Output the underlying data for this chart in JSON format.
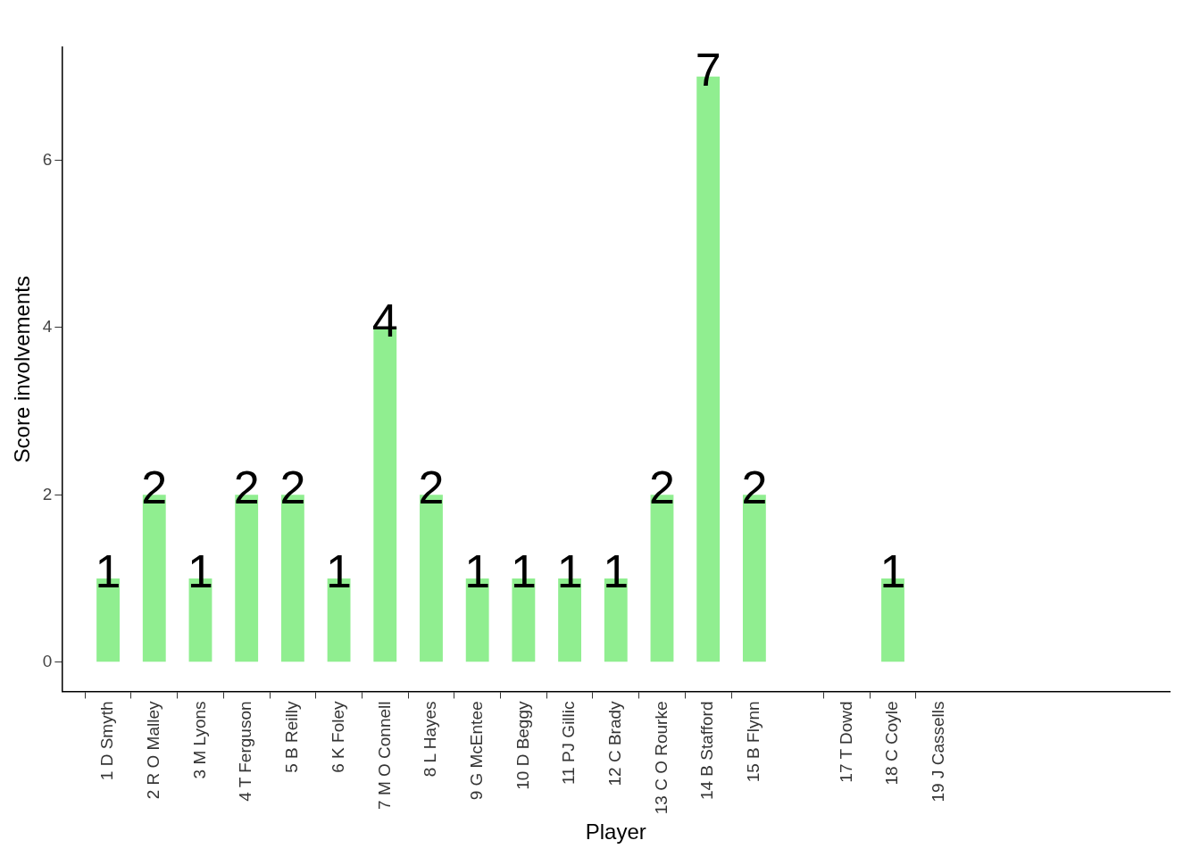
{
  "chart_data": {
    "type": "bar",
    "xlabel": "Player",
    "ylabel": "Score involvements",
    "categories": [
      null,
      "1 D Smyth",
      "2 R O Malley",
      "3 M Lyons",
      "4 T Ferguson",
      "5 B Reilly",
      "6 K Foley",
      "7 M O Connell",
      "8 L Hayes",
      "9 G McEntee",
      "10 D Beggy",
      "11 PJ Gillic",
      "12 C Brady",
      "13 C O Rourke",
      "14 B Stafford",
      "15 B Flynn",
      null,
      "17 T Dowd",
      "18 C Coyle",
      "19 J Cassells",
      null,
      null,
      null,
      null,
      null
    ],
    "values": [
      null,
      1,
      2,
      1,
      2,
      2,
      1,
      4,
      2,
      1,
      1,
      1,
      1,
      2,
      7,
      2,
      null,
      null,
      1,
      null,
      null,
      null,
      null,
      null,
      null
    ],
    "color": "#90ee90",
    "ylim": [
      -0.35,
      7.35
    ],
    "yticks": [
      0,
      2,
      4,
      6
    ],
    "grid": false,
    "legend": false,
    "data_labels": true
  }
}
